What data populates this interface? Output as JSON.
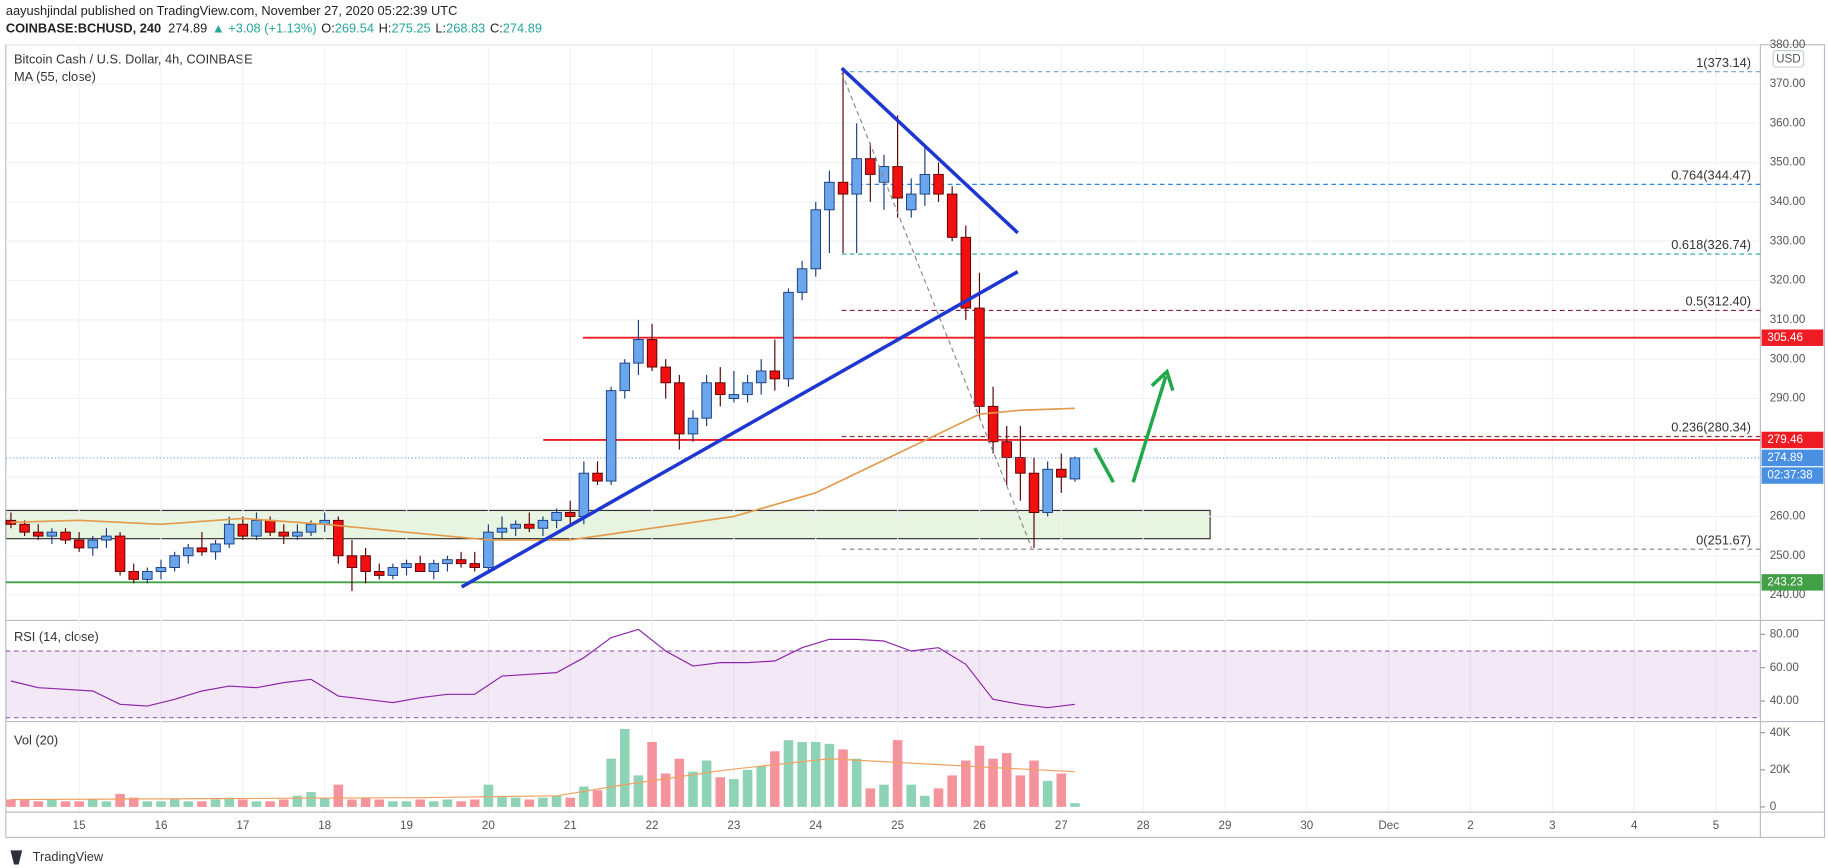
{
  "header": {
    "publisher": "aayushjindal published on TradingView.com, November 27, 2020 05:22:39 UTC",
    "symbol": "COINBASE:BCHUSD, 240",
    "change": "▲ +3.08 (+1.13%)",
    "ohlc_labels": [
      "O:",
      "H:",
      "L:",
      "C:"
    ]
  },
  "footer": {
    "brand": "TradingView"
  },
  "chart_data": {
    "type": "candlestick",
    "title": "Bitcoin Cash / U.S. Dollar, 4h, COINBASE",
    "currency": "USD",
    "grid": true,
    "up_color": "#6aa6ec",
    "down_color": "#f01010",
    "candles": {
      "x": [
        -20,
        -16,
        -12,
        -8,
        -4,
        0,
        4,
        8,
        12,
        16,
        20,
        24,
        28,
        32,
        36,
        40,
        44,
        48,
        52,
        56,
        60,
        64,
        68,
        72,
        76,
        80,
        84,
        88,
        92,
        96,
        100,
        104,
        108,
        112,
        116,
        120,
        124,
        128,
        132,
        136,
        140,
        144,
        148,
        152,
        156,
        160,
        164,
        168,
        172,
        176,
        180,
        184,
        188,
        192,
        196,
        200,
        204,
        208,
        212,
        216,
        220,
        224,
        228,
        232,
        236,
        240,
        244,
        248,
        252,
        256,
        260,
        264,
        268,
        272,
        276,
        280,
        284,
        288,
        292
      ],
      "open": [
        259,
        258,
        256,
        255,
        256,
        254,
        252,
        254,
        255,
        246,
        244,
        246,
        247,
        250,
        252,
        251,
        253,
        258,
        255,
        259,
        256,
        255,
        256,
        258,
        259,
        250,
        250,
        246,
        245,
        247,
        248,
        246,
        248,
        249,
        248,
        247,
        256,
        257,
        258,
        257,
        259,
        261,
        260,
        271,
        269,
        292,
        299,
        305,
        298,
        294,
        281,
        285,
        294,
        290,
        291,
        294,
        297,
        295,
        317,
        323,
        338,
        345,
        342,
        351,
        345,
        349,
        338,
        342,
        347,
        342,
        331,
        313,
        288,
        279,
        275,
        271,
        261,
        272,
        269.54
      ],
      "high": [
        261,
        259,
        258,
        257,
        257,
        256,
        255,
        257,
        256,
        248,
        247,
        249,
        251,
        253,
        256,
        254,
        260,
        260,
        261,
        260,
        258,
        258,
        259,
        261,
        260,
        254,
        252,
        248,
        248,
        249,
        250,
        249,
        250,
        251,
        251,
        258,
        260,
        259,
        261,
        260,
        262,
        264,
        274,
        274,
        293,
        300,
        310,
        309,
        300,
        296,
        287,
        296,
        298,
        297,
        296,
        300,
        305,
        318,
        325,
        340,
        348,
        373,
        360,
        355,
        352,
        362,
        346,
        354,
        350,
        344,
        334,
        322,
        293,
        283,
        283,
        275,
        274,
        276,
        275.25
      ],
      "low": [
        257,
        255,
        254,
        253,
        253,
        251,
        250,
        252,
        245,
        243,
        243,
        244,
        246,
        248,
        250,
        249,
        252,
        254,
        254,
        255,
        253,
        254,
        255,
        256,
        248,
        241,
        243,
        244,
        244,
        245,
        246,
        244,
        246,
        247,
        246,
        246,
        254,
        255,
        256,
        255,
        257,
        258,
        258,
        268,
        268,
        290,
        296,
        297,
        290,
        277,
        279,
        283,
        288,
        289,
        289,
        291,
        292,
        293,
        315,
        321,
        327,
        327,
        327,
        340,
        338,
        336,
        336,
        339,
        340,
        330,
        310,
        285,
        276,
        268,
        264,
        252,
        260,
        266,
        268.83
      ],
      "close": [
        258,
        256,
        255,
        256,
        254,
        252,
        254,
        255,
        246,
        244,
        246,
        247,
        250,
        252,
        251,
        253,
        258,
        255,
        259,
        256,
        255,
        256,
        258,
        259,
        250,
        247,
        246,
        245,
        247,
        248,
        246,
        248,
        249,
        248,
        247,
        256,
        257,
        258,
        257,
        259,
        261,
        260,
        271,
        269,
        292,
        299,
        305,
        298,
        294,
        281,
        285,
        294,
        291,
        291,
        294,
        297,
        295,
        317,
        323,
        338,
        345,
        342,
        351,
        347,
        349,
        341,
        342,
        347,
        342,
        331,
        313,
        288,
        279,
        275,
        271,
        261,
        272,
        270,
        274.89
      ]
    },
    "ma": {
      "name": "MA (55, close)",
      "color": "#e39a4c",
      "x": [
        -20,
        0,
        24,
        48,
        72,
        96,
        120,
        144,
        168,
        192,
        216,
        240,
        264,
        276,
        292
      ],
      "values": [
        258.5,
        259,
        258,
        259.5,
        258,
        256,
        254,
        254,
        257,
        260,
        266,
        276,
        286,
        287,
        287.5
      ]
    },
    "xlim": [
      -21.5,
      493
    ],
    "xticks": [
      {
        "value": 0,
        "label": "15"
      },
      {
        "value": 24,
        "label": "16"
      },
      {
        "value": 48,
        "label": "17"
      },
      {
        "value": 72,
        "label": "18"
      },
      {
        "value": 96,
        "label": "19"
      },
      {
        "value": 120,
        "label": "20"
      },
      {
        "value": 144,
        "label": "21"
      },
      {
        "value": 168,
        "label": "22"
      },
      {
        "value": 192,
        "label": "23"
      },
      {
        "value": 216,
        "label": "24"
      },
      {
        "value": 240,
        "label": "25"
      },
      {
        "value": 264,
        "label": "26"
      },
      {
        "value": 288,
        "label": "27"
      },
      {
        "value": 312,
        "label": "28"
      },
      {
        "value": 336,
        "label": "29"
      },
      {
        "value": 360,
        "label": "30"
      },
      {
        "value": 384,
        "label": "Dec"
      },
      {
        "value": 408,
        "label": "2"
      },
      {
        "value": 432,
        "label": "3"
      },
      {
        "value": 456,
        "label": "4"
      },
      {
        "value": 480,
        "label": "5"
      }
    ],
    "ylim": [
      233.7,
      380
    ],
    "yticks": [
      {
        "value": 240,
        "label": "240.00"
      },
      {
        "value": 250,
        "label": "250.00"
      },
      {
        "value": 260,
        "label": "260.00"
      },
      {
        "value": 270,
        "label": "270.00"
      },
      {
        "value": 280,
        "label": "280.00"
      },
      {
        "value": 290,
        "label": "290.00"
      },
      {
        "value": 300,
        "label": "300.00"
      },
      {
        "value": 310,
        "label": "310.00"
      },
      {
        "value": 320,
        "label": "320.00"
      },
      {
        "value": 330,
        "label": "330.00"
      },
      {
        "value": 340,
        "label": "340.00"
      },
      {
        "value": 350,
        "label": "350.00"
      },
      {
        "value": 360,
        "label": "360.00"
      },
      {
        "value": 370,
        "label": "370.00"
      },
      {
        "value": 380,
        "label": "380.00"
      }
    ],
    "levels": [
      {
        "value": 305.46,
        "label": "305.46",
        "color": "#f01c24"
      },
      {
        "value": 279.46,
        "label": "279.46",
        "color": "#f01c24"
      },
      {
        "value": 243.23,
        "label": "243.23",
        "color": "#43a047"
      }
    ],
    "fib": [
      {
        "value": 373.14,
        "label": "1(373.14)",
        "color": "#64a8d8"
      },
      {
        "value": 344.47,
        "label": "0.764(344.47)",
        "color": "#2e86de"
      },
      {
        "value": 326.74,
        "label": "0.618(326.74)",
        "color": "#26a69a"
      },
      {
        "value": 312.4,
        "label": "0.5(312.40)",
        "color": "#8b1a3a"
      },
      {
        "value": 280.34,
        "label": "0.236(280.34)",
        "color": "#8b3a3a"
      },
      {
        "value": 251.67,
        "label": "0(251.67)",
        "color": "#808080"
      }
    ],
    "countdown": "02:37:38",
    "rsi": {
      "name": "RSI (14, close)",
      "color": "#8e24aa",
      "x": [
        -20,
        -12,
        -4,
        4,
        12,
        20,
        28,
        36,
        44,
        52,
        60,
        68,
        76,
        84,
        92,
        100,
        108,
        116,
        124,
        132,
        140,
        148,
        156,
        164,
        172,
        180,
        188,
        196,
        204,
        212,
        220,
        228,
        236,
        244,
        252,
        260,
        268,
        276,
        284,
        292
      ],
      "values": [
        52,
        48,
        47,
        46,
        38,
        37,
        41,
        46,
        49,
        48,
        51,
        53,
        43,
        41,
        39,
        42,
        44,
        44,
        55,
        56,
        57,
        66,
        78,
        83,
        70,
        61,
        63,
        63,
        64,
        72,
        77,
        77,
        76,
        70,
        72,
        62,
        41,
        38,
        36,
        38
      ],
      "ylim": [
        28,
        88
      ],
      "yticks": [
        {
          "value": 80,
          "label": "80.00"
        },
        {
          "value": 60,
          "label": "60.00"
        },
        {
          "value": 40,
          "label": "40.00"
        }
      ],
      "band": [
        30,
        70
      ]
    },
    "volume": {
      "name": "Vol (20)",
      "up_color": "#8fd3b6",
      "down_color": "#f4939c",
      "values": [
        4000,
        4000,
        3000,
        4000,
        3000,
        3000,
        4000,
        3000,
        7000,
        5000,
        3000,
        3000,
        4000,
        3000,
        3000,
        4000,
        5000,
        4000,
        3000,
        3000,
        4000,
        6000,
        8000,
        5000,
        12000,
        4000,
        5000,
        4000,
        3000,
        3000,
        4000,
        3000,
        4000,
        3000,
        4000,
        12000,
        6000,
        5000,
        4000,
        5000,
        6000,
        5000,
        11000,
        9000,
        26000,
        42000,
        17000,
        35000,
        18000,
        26000,
        19000,
        25000,
        16000,
        15000,
        20000,
        22000,
        30000,
        36000,
        35000,
        35000,
        34000,
        31000,
        26000,
        10000,
        12000,
        36000,
        12000,
        6000,
        10000,
        17000,
        25000,
        33000,
        26000,
        29000,
        17000,
        25000,
        14000,
        18000,
        2000
      ],
      "ylim": [
        -2500,
        45700
      ],
      "yticks": [
        {
          "value": 40000,
          "label": "40K"
        },
        {
          "value": 20000,
          "label": "20K"
        },
        0
      ],
      "ma": {
        "color": "#f0a060",
        "x": [
          -20,
          40,
          100,
          140,
          160,
          190,
          220,
          250,
          270,
          292
        ],
        "values": [
          4000,
          4500,
          5000,
          6000,
          12000,
          20000,
          26000,
          23000,
          21000,
          19000
        ]
      }
    }
  }
}
